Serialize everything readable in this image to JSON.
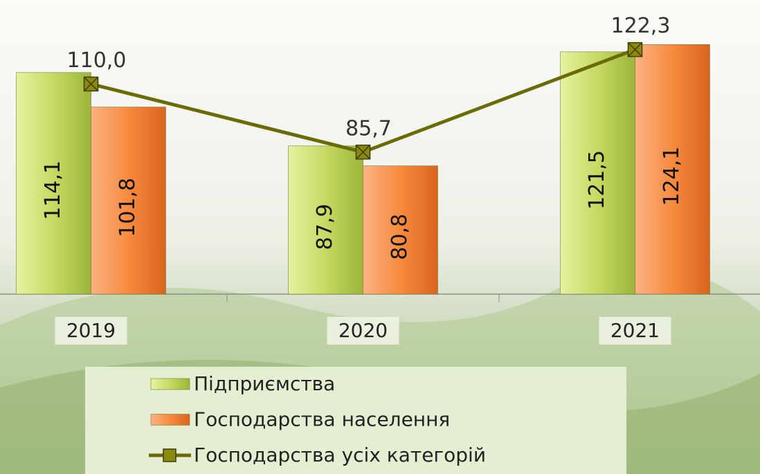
{
  "chart_data": {
    "type": "bar",
    "categories": [
      "2019",
      "2020",
      "2021"
    ],
    "ylim": [
      35,
      140
    ],
    "series": [
      {
        "name": "Підприємства",
        "type": "bar",
        "color": "#c5da63",
        "values": [
          114.1,
          87.9,
          121.5
        ],
        "value_labels": [
          "114,1",
          "87,9",
          "121,5"
        ]
      },
      {
        "name": "Господарства населення",
        "type": "bar",
        "color": "#f78a3f",
        "values": [
          101.8,
          80.8,
          124.1
        ],
        "value_labels": [
          "101,8",
          "80,8",
          "124,1"
        ]
      },
      {
        "name": "Господарства усіх категорій",
        "type": "line",
        "color": "#6b6a05",
        "values": [
          110.0,
          85.7,
          122.3
        ],
        "value_labels": [
          "110,0",
          "85,7",
          "122,3"
        ]
      }
    ]
  }
}
